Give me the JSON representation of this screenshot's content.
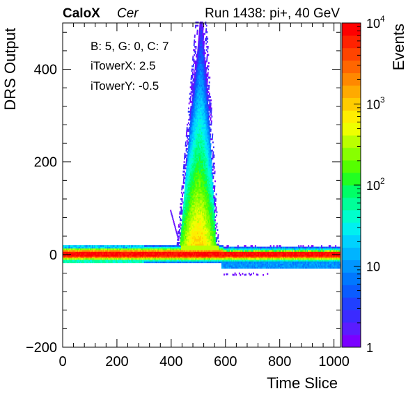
{
  "header": {
    "brand": "CaloX",
    "channel": "Cer",
    "run_info": "Run 1438: pi+, 40 GeV"
  },
  "annotations": [
    "B: 5, G: 0, C: 7",
    "iTowerX: 2.5",
    "iTowerY: -0.5"
  ],
  "chart_data": {
    "type": "heatmap",
    "xlabel": "Time Slice",
    "ylabel": "DRS Output",
    "zlabel": "Events",
    "xlim": [
      0,
      1024
    ],
    "ylim": [
      -200,
      500
    ],
    "zlim": [
      1,
      10000
    ],
    "z_scale": "log",
    "x_ticks": [
      0,
      200,
      400,
      600,
      800,
      1000
    ],
    "x_tick_labels": [
      "0",
      "200",
      "400",
      "600",
      "800",
      "1000"
    ],
    "y_ticks": [
      -200,
      0,
      200,
      400
    ],
    "y_tick_labels": [
      "−200",
      "0",
      "200",
      "400"
    ],
    "z_ticks": [
      1,
      10,
      100,
      1000,
      10000
    ],
    "z_tick_labels": [
      {
        "base": "1",
        "exp": ""
      },
      {
        "base": "10",
        "exp": ""
      },
      {
        "base": "10",
        "exp": "2"
      },
      {
        "base": "10",
        "exp": "3"
      },
      {
        "base": "10",
        "exp": "4"
      }
    ],
    "grid": false,
    "palette": [
      "#7a00ff",
      "#5a1cff",
      "#3b2bff",
      "#2040ff",
      "#0a5cff",
      "#0078ff",
      "#0096ff",
      "#00b4ff",
      "#00d2ff",
      "#00f0f0",
      "#00ffcc",
      "#00ff99",
      "#00ff66",
      "#22ff22",
      "#55ff00",
      "#88ff00",
      "#bbff00",
      "#eeff00",
      "#ffee00",
      "#ffcc00",
      "#ffaa00",
      "#ff8800",
      "#ff6600",
      "#ff4400",
      "#ff2200",
      "#ff0000"
    ],
    "features": {
      "baseline_band": {
        "y_range": [
          -18,
          20
        ],
        "x_range": [
          0,
          1024
        ],
        "core_y": [
          -3,
          5
        ],
        "peak_events": 10000
      },
      "pulse": {
        "x_center": 505,
        "x_width": 60,
        "y_peak": 500,
        "events_at_base": 1000
      },
      "negative_tail": {
        "x_range": [
          585,
          1024
        ],
        "y_range": [
          -30,
          -18
        ],
        "events": 10
      },
      "spike": {
        "x_range": [
          395,
          425
        ],
        "y_range": [
          30,
          95
        ],
        "events": 1
      }
    }
  }
}
